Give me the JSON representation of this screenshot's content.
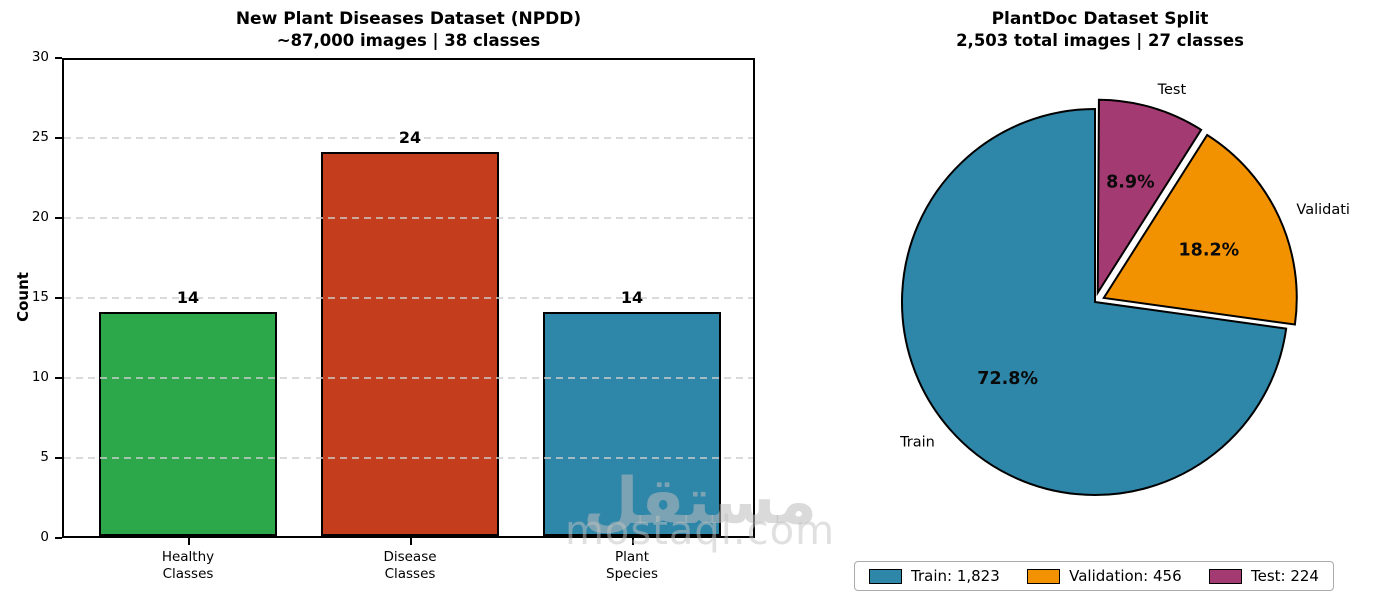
{
  "watermark": {
    "arabic": "مستقل",
    "latin": "mostaql.com"
  },
  "chart_data": [
    {
      "type": "bar",
      "title": "New Plant Diseases Dataset (NPDD)",
      "subtitle": "~87,000 images | 38 classes",
      "xlabel": "",
      "ylabel": "Count",
      "ylim": [
        0,
        30
      ],
      "yticks": [
        0,
        5,
        10,
        15,
        20,
        25,
        30
      ],
      "grid": "dashed-horizontal",
      "categories": [
        [
          "Healthy",
          "Classes"
        ],
        [
          "Disease",
          "Classes"
        ],
        [
          "Plant",
          "Species"
        ]
      ],
      "values": [
        14,
        24,
        14
      ],
      "bar_colors": [
        "#2ca84a",
        "#c43d1c",
        "#2e86a8"
      ],
      "bar_edge_color": "#000000"
    },
    {
      "type": "pie",
      "title": "PlantDoc Dataset Split",
      "subtitle": "2,503 total images | 27 classes",
      "start_angle": 90,
      "counterclock": true,
      "slices": [
        {
          "label": "Train",
          "count": 1823,
          "pct": 72.8,
          "color": "#2e86a8",
          "explode": 0
        },
        {
          "label": "Validation",
          "count": 456,
          "pct": 18.2,
          "color": "#f39200",
          "explode": 0.05
        },
        {
          "label": "Test",
          "count": 224,
          "pct": 8.9,
          "color": "#a43a72",
          "explode": 0.05
        }
      ],
      "edge_color": "#000000",
      "legend_position": "bottom",
      "legend": [
        "Train: 1,823",
        "Validation: 456",
        "Test: 224"
      ]
    }
  ]
}
